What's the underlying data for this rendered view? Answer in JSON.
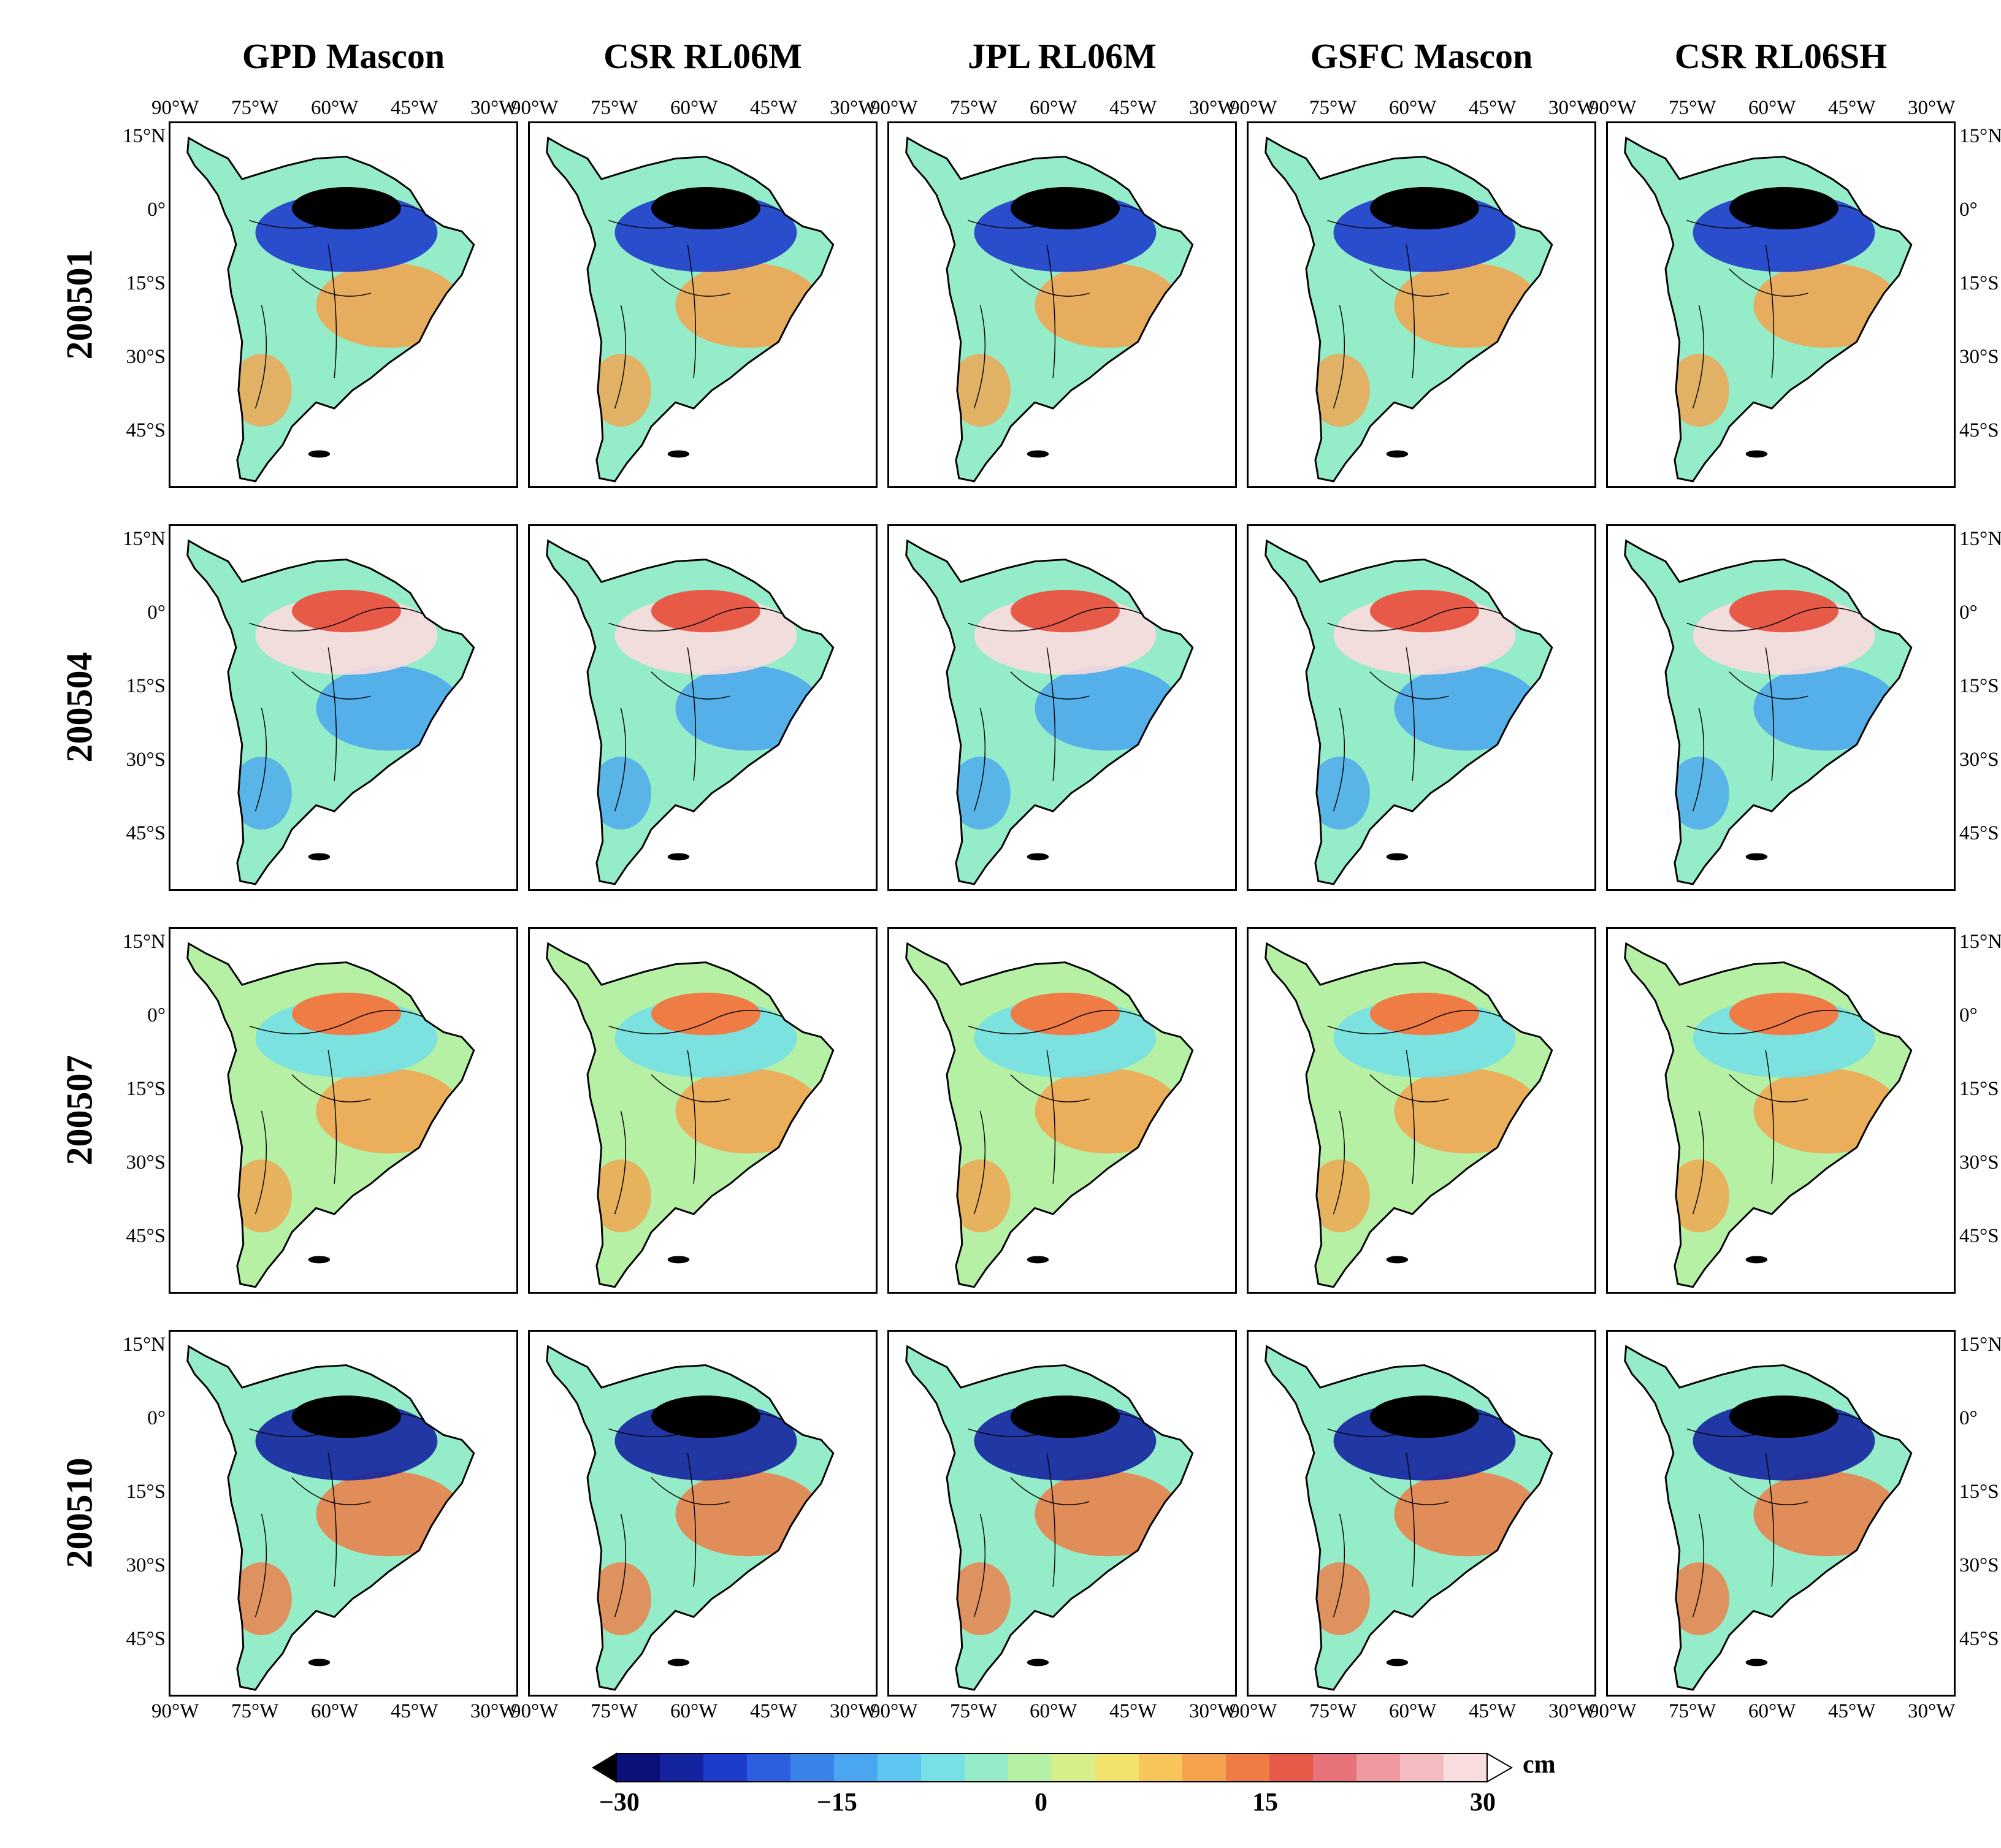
{
  "figure": {
    "columns": [
      "GPD Mascon",
      "CSR RL06M",
      "JPL RL06M",
      "GSFC Mascon",
      "CSR RL06SH"
    ],
    "rows": [
      "200501",
      "200504",
      "200507",
      "200510"
    ],
    "lon_ticks": [
      "90°W",
      "75°W",
      "60°W",
      "45°W",
      "30°W"
    ],
    "lat_ticks": [
      "15°N",
      "0°",
      "15°S",
      "30°S",
      "45°S"
    ]
  },
  "colorbar": {
    "unit": "cm",
    "min": -30,
    "max": 30,
    "tick_labels": [
      "−30",
      "−15",
      "0",
      "15",
      "30"
    ],
    "colors": [
      "#000000",
      "#0b0f7a",
      "#14239e",
      "#1e3ccc",
      "#2b5fe0",
      "#3a83ea",
      "#4aa6f0",
      "#5ec6f2",
      "#76e0e6",
      "#95ecc8",
      "#b5f0a5",
      "#d6ef88",
      "#f2e36e",
      "#f7c55a",
      "#f4a24c",
      "#ef7c45",
      "#e85a48",
      "#e8727a",
      "#ee9aa0",
      "#f4bcc0",
      "#f9dcde",
      "#ffffff"
    ]
  }
}
